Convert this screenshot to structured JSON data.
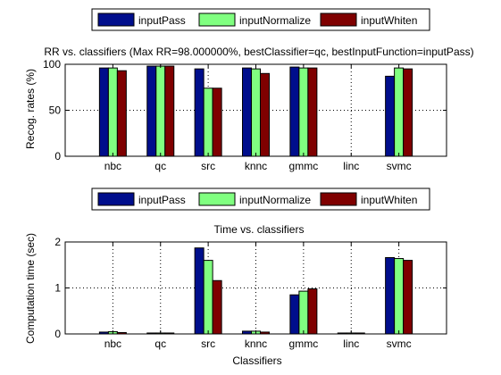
{
  "figure": {
    "colors": {
      "inputPass": "#000e8c",
      "inputNormalize": "#80ff80",
      "inputWhiten": "#7f0000",
      "background": "#ffffff",
      "axis": "#000000"
    }
  },
  "chart_data": [
    {
      "type": "bar",
      "title": "RR vs. classifiers (Max RR=98.000000%, bestClassifier=qc, bestInputFunction=inputPass)",
      "xlabel": "",
      "ylabel": "Recog. rates (%)",
      "ylim": [
        0,
        100
      ],
      "yticks": [
        "0",
        "50",
        "100"
      ],
      "grid": "dotted",
      "legend_position": "top",
      "categories": [
        "nbc",
        "qc",
        "src",
        "knnc",
        "gmmc",
        "linc",
        "svmc"
      ],
      "series": [
        {
          "name": "inputPass",
          "color": "#000e8c",
          "values": [
            96,
            98,
            95,
            96,
            97,
            0,
            87
          ]
        },
        {
          "name": "inputNormalize",
          "color": "#80ff80",
          "values": [
            96,
            98,
            74,
            95,
            96,
            0,
            96
          ]
        },
        {
          "name": "inputWhiten",
          "color": "#7f0000",
          "values": [
            93,
            98,
            74,
            90,
            96,
            0,
            95
          ]
        }
      ]
    },
    {
      "type": "bar",
      "title": "Time vs. classifiers",
      "xlabel": "Classifiers",
      "ylabel": "Computation time (sec)",
      "ylim": [
        0,
        2
      ],
      "yticks": [
        "0",
        "1",
        "2"
      ],
      "grid": "dotted",
      "legend_position": "top",
      "categories": [
        "nbc",
        "qc",
        "src",
        "knnc",
        "gmmc",
        "linc",
        "svmc"
      ],
      "series": [
        {
          "name": "inputPass",
          "color": "#000e8c",
          "values": [
            0.04,
            0.02,
            1.87,
            0.06,
            0.85,
            0.02,
            1.66
          ]
        },
        {
          "name": "inputNormalize",
          "color": "#80ff80",
          "values": [
            0.05,
            0.02,
            1.6,
            0.06,
            0.93,
            0.02,
            1.64
          ]
        },
        {
          "name": "inputWhiten",
          "color": "#7f0000",
          "values": [
            0.03,
            0.02,
            1.16,
            0.04,
            0.98,
            0.02,
            1.6
          ]
        }
      ]
    }
  ]
}
